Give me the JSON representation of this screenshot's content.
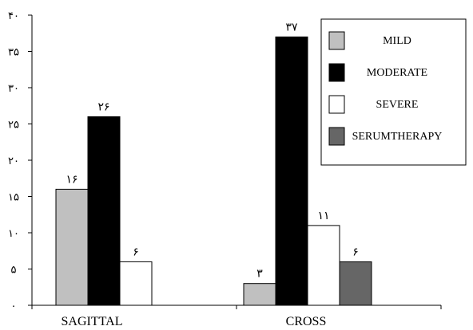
{
  "chart_data": {
    "type": "bar",
    "categories": [
      "SAGITTAL",
      "CROSS"
    ],
    "series": [
      {
        "name": "MILD",
        "values": [
          16,
          3
        ],
        "labels": [
          "١۶",
          "٣"
        ],
        "color": "#c0c0c0"
      },
      {
        "name": "MODERATE",
        "values": [
          26,
          37
        ],
        "labels": [
          "٢۶",
          "٣٧"
        ],
        "color": "#000000"
      },
      {
        "name": "SEVERE",
        "values": [
          6,
          11
        ],
        "labels": [
          "۶",
          "١١"
        ],
        "color": "#ffffff"
      },
      {
        "name": "SERUMTHERAPY",
        "values": [
          null,
          6
        ],
        "labels": [
          "",
          "۶"
        ],
        "color": "#666666"
      }
    ],
    "yticks": [
      0,
      5,
      10,
      15,
      20,
      25,
      30,
      35,
      40
    ],
    "ytick_labels": [
      "٠",
      "۵",
      "١٠",
      "١۵",
      "٢٠",
      "٢۵",
      "٣٠",
      "٣۵",
      "۴٠"
    ],
    "ylim": [
      0,
      40
    ],
    "legend": "top-right",
    "grid": false
  }
}
